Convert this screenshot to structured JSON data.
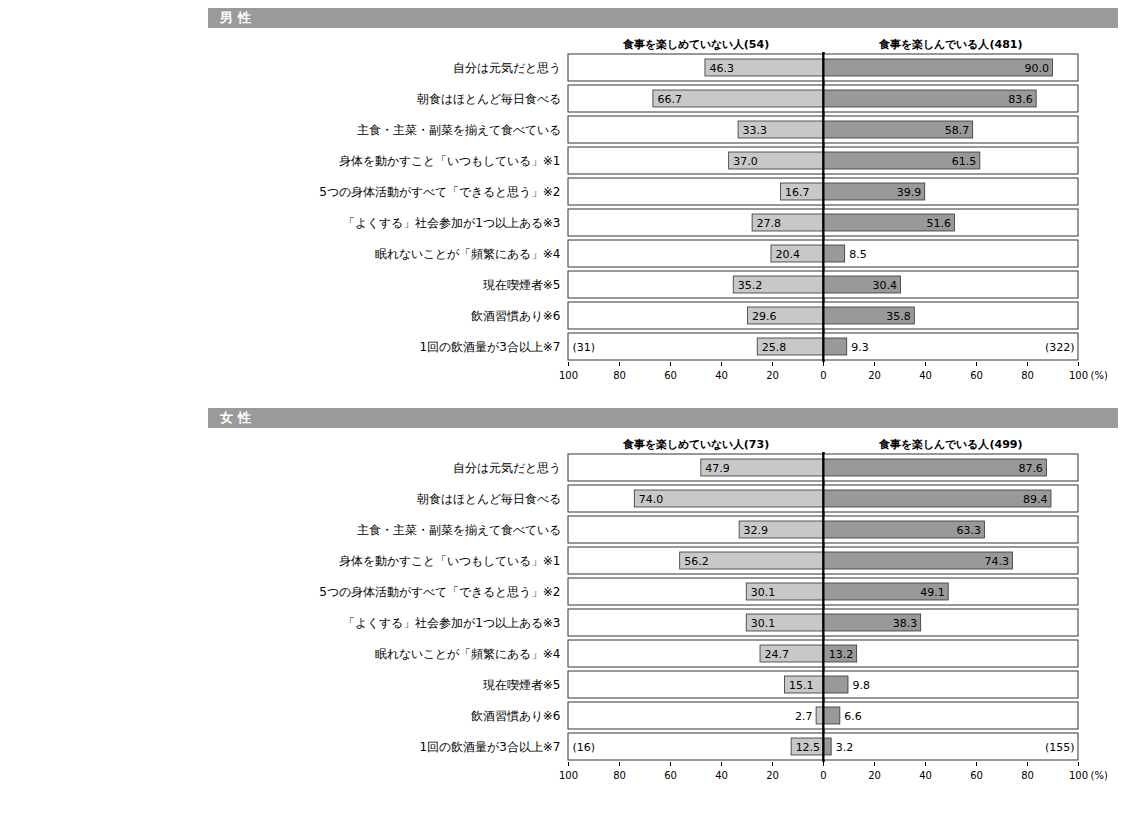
{
  "chart_data": [
    {
      "type": "bar",
      "orientation": "horizontal",
      "title": "男 性",
      "categories": [
        "自分は元気だと思う",
        "朝食はほとんど毎日食べる",
        "主食・主菜・副菜を揃えて食べている",
        "身体を動かすこと「いつもしている」※1",
        "5つの身体活動がすべて「できると思う」※2",
        "「よくする」社会参加が1つ以上ある※3",
        "眠れないことが「頻繁にある」※4",
        "現在喫煙者※5",
        "飲酒習慣あり※6",
        "1回の飲酒量が3合以上※7"
      ],
      "series": [
        {
          "name": "食事を楽しめていない人(54)",
          "color": "#c8c8c8",
          "values": [
            46.3,
            66.7,
            33.3,
            37.0,
            16.7,
            27.8,
            20.4,
            35.2,
            29.6,
            25.8
          ],
          "value_labels": [
            "46.3",
            "66.7",
            "33.3",
            "37.0",
            "16.7",
            "27.8",
            "20.4",
            "35.2",
            "29.6",
            "25.8"
          ]
        },
        {
          "name": "食事を楽しんでいる人(481)",
          "color": "#999999",
          "values": [
            90.0,
            83.6,
            58.7,
            61.5,
            39.9,
            51.6,
            8.5,
            30.4,
            35.8,
            9.3
          ],
          "value_labels": [
            "90.0",
            "83.6",
            "58.7",
            "61.5",
            "39.9",
            "51.6",
            "8.5",
            "30.4",
            "35.8",
            "9.3"
          ]
        }
      ],
      "annotations": [
        {
          "text": "(31)",
          "category": "1回の飲酒量が3合以上※7",
          "series": "食事を楽しめていない人(54)"
        },
        {
          "text": "(322)",
          "category": "1回の飲酒量が3合以上※7",
          "series": "食事を楽しんでいる人(481)"
        }
      ],
      "xlim": [
        0,
        100
      ],
      "xticks": [
        0,
        20,
        40,
        60,
        80,
        100
      ],
      "xlabel": "(%)",
      "data_labels": true,
      "grid": false
    },
    {
      "type": "bar",
      "orientation": "horizontal",
      "title": "女 性",
      "categories": [
        "自分は元気だと思う",
        "朝食はほとんど毎日食べる",
        "主食・主菜・副菜を揃えて食べている",
        "身体を動かすこと「いつもしている」※1",
        "5つの身体活動がすべて「できると思う」※2",
        "「よくする」社会参加が1つ以上ある※3",
        "眠れないことが「頻繁にある」※4",
        "現在喫煙者※5",
        "飲酒習慣あり※6",
        "1回の飲酒量が3合以上※7"
      ],
      "series": [
        {
          "name": "食事を楽しめていない人(73)",
          "color": "#c8c8c8",
          "values": [
            47.9,
            74.0,
            32.9,
            56.2,
            30.1,
            30.1,
            24.7,
            15.1,
            2.7,
            12.5
          ],
          "value_labels": [
            "47.9",
            "74.0",
            "32.9",
            "56.2",
            "30.1",
            "30.1",
            "24.7",
            "15.1",
            "2.7",
            "12.5"
          ]
        },
        {
          "name": "食事を楽しんでいる人(499)",
          "color": "#999999",
          "values": [
            87.6,
            89.4,
            63.3,
            74.3,
            49.1,
            38.3,
            13.2,
            9.8,
            6.6,
            3.2
          ],
          "value_labels": [
            "87.6",
            "89.4",
            "63.3",
            "74.3",
            "49.1",
            "38.3",
            "13.2",
            "9.8",
            "6.6",
            "3.2"
          ]
        }
      ],
      "annotations": [
        {
          "text": "(16)",
          "category": "1回の飲酒量が3合以上※7",
          "series": "食事を楽しめていない人(73)"
        },
        {
          "text": "(155)",
          "category": "1回の飲酒量が3合以上※7",
          "series": "食事を楽しんでいる人(499)"
        }
      ],
      "xlim": [
        0,
        100
      ],
      "xticks": [
        0,
        20,
        40,
        60,
        80,
        100
      ],
      "xlabel": "(%)",
      "data_labels": true,
      "grid": false
    }
  ]
}
